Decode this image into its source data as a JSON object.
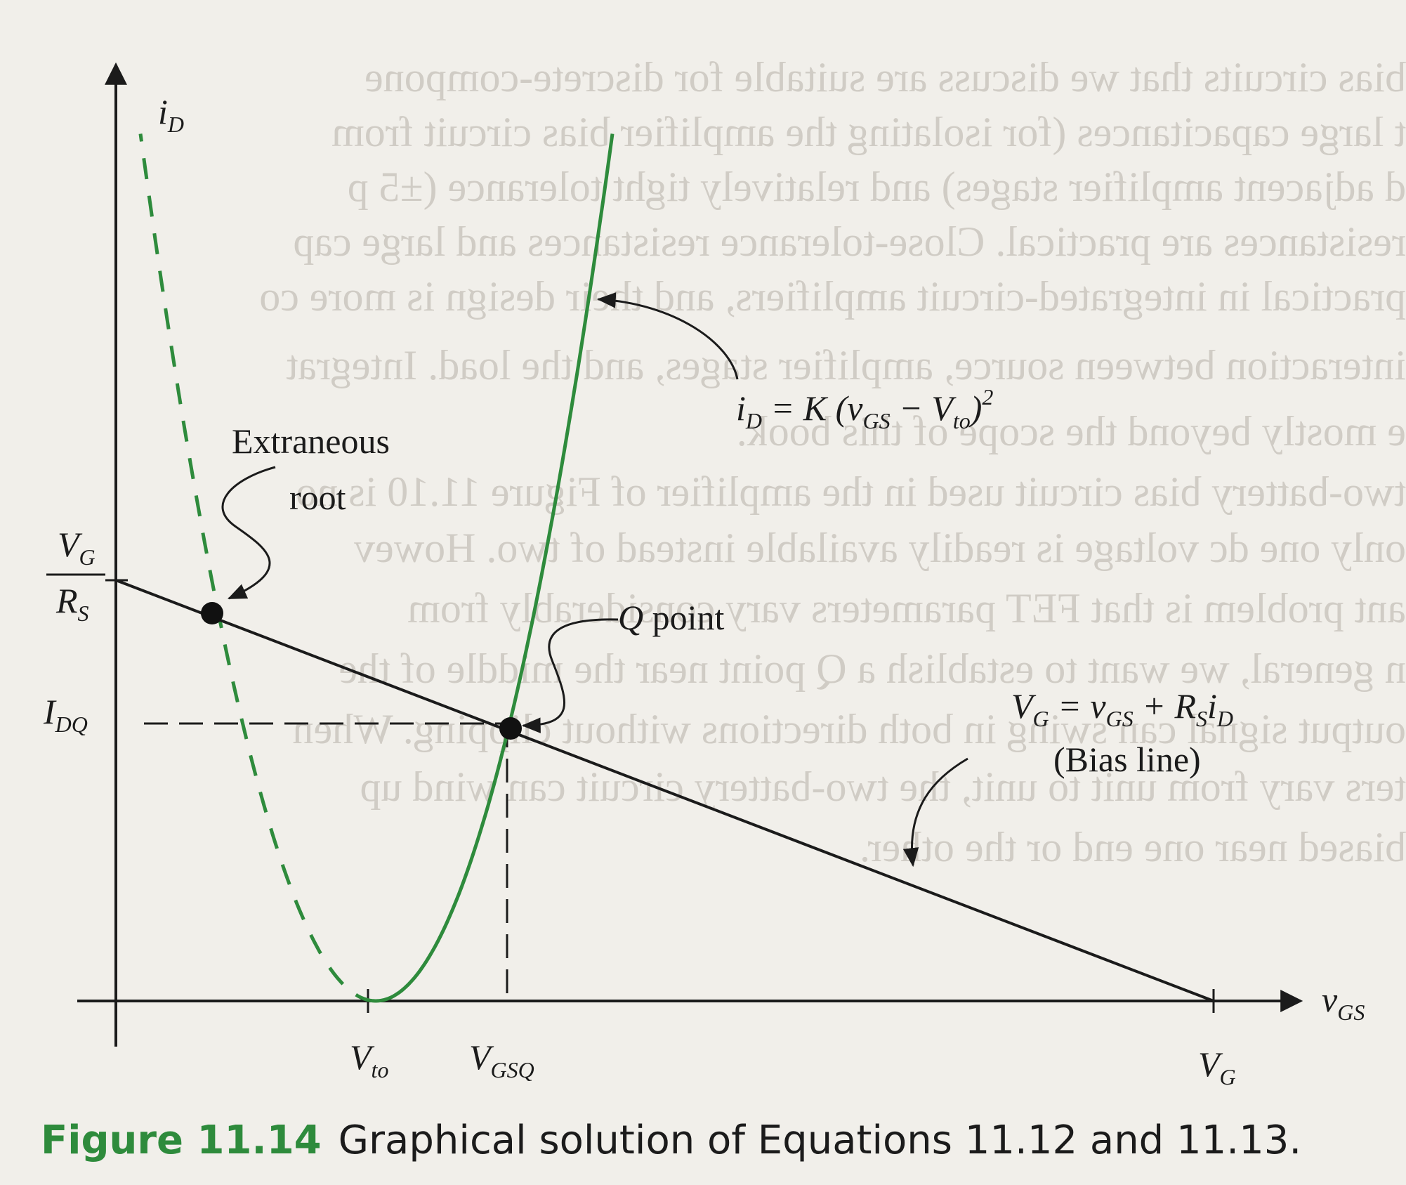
{
  "figure": {
    "caption_number": "Figure 11.14",
    "caption_text": "Graphical solution of Equations 11.12 and 11.13."
  },
  "axes": {
    "y_label": "i",
    "y_label_sub": "D",
    "x_label": "v",
    "x_label_sub": "GS"
  },
  "y_ticks": {
    "vg_rs_num": "V",
    "vg_rs_num_sub": "G",
    "vg_rs_den": "R",
    "vg_rs_den_sub": "S",
    "idq": "I",
    "idq_sub": "DQ"
  },
  "x_ticks": {
    "vto": "V",
    "vto_sub": "to",
    "vgsq": "V",
    "vgsq_sub": "GSQ",
    "vg": "V",
    "vg_sub": "G"
  },
  "annotations": {
    "extraneous_line1": "Extraneous",
    "extraneous_line2": "root",
    "q_point_q": "Q",
    "q_point_rest": " point",
    "parabola_eq": {
      "i": "i",
      "i_sub": "D",
      "eq": " = K (",
      "v": "v",
      "v_sub": "GS",
      "minus": " − V",
      "vto_sub": "to",
      "close": ")",
      "sup": "2"
    },
    "bias_eq": {
      "v": "V",
      "v_sub": "G",
      "eq": " = v",
      "vgs_sub": "GS",
      "plus": " + R",
      "rs_sub": "S",
      "i": "i",
      "i_sub": "D"
    },
    "bias_line_label": "(Bias line)"
  },
  "background_text": [
    "bias circuits that we discuss are suitable for discrete-compone",
    "t large capacitances (for isolating the amplifier bias circuit from",
    "d adjacent amplifier stages) and relatively tight tolerance (±5 p",
    "resistances are practical. Close-tolerance resistances and large cap",
    "practical in integrated-circuit amplifiers, and their design is more co",
    "interaction between source, amplifier stages, and the load. Integrat",
    "e mostly beyond the scope of this book.",
    "two-battery bias circuit used in the amplifier of Figure 11.10 is no",
    "only one dc voltage is readily available instead of two. Howev",
    "ant problem is that FET parameters vary considerably from",
    "n general, we want to establish a Q point near the middle of the",
    "output signal can swing in both directions without clipping. When",
    "ters vary from unit to unit, the two-battery circuit can wind up",
    "biased near one end or the other."
  ],
  "colors": {
    "curve_green": "#2e8b3c",
    "ink": "#1b1b1b",
    "paper": "#f1efea"
  }
}
